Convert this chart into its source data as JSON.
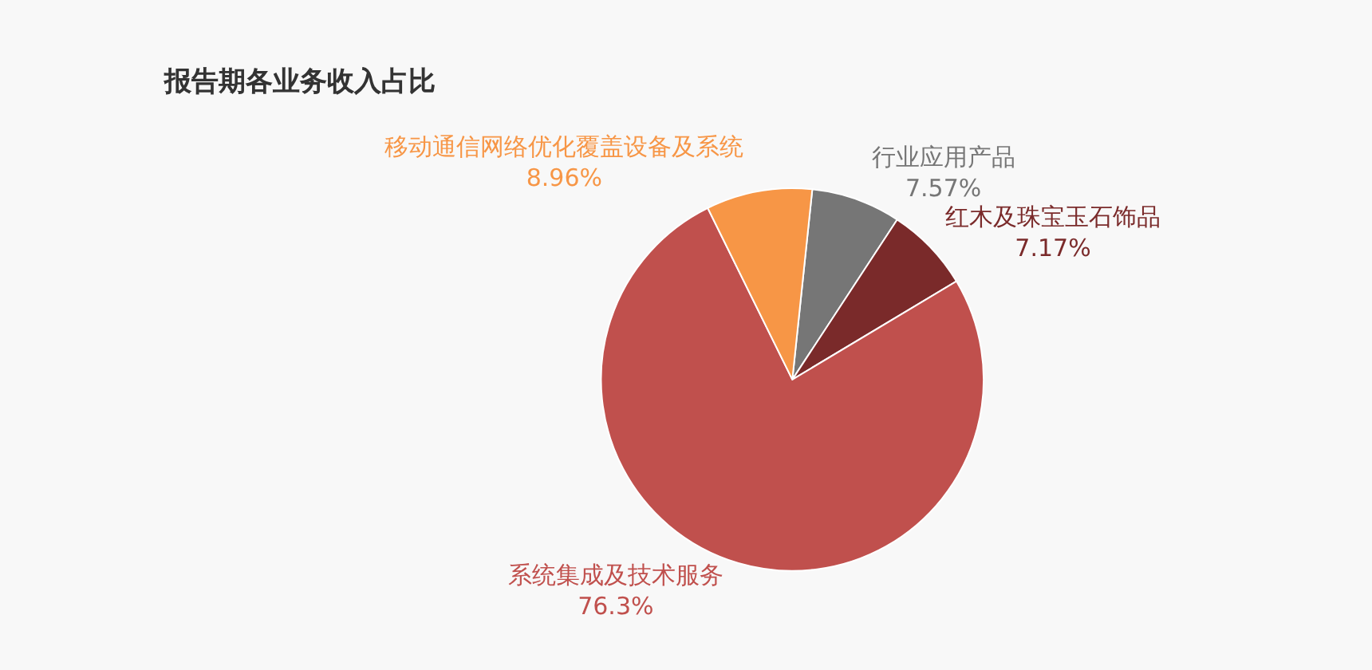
{
  "chart_data": {
    "type": "pie",
    "title": "报告期各业务收入占比",
    "categories": [
      "行业应用产品",
      "红木及珠宝玉石饰品",
      "系统集成及技术服务",
      "移动通信网络优化覆盖设备及系统"
    ],
    "values": [
      7.57,
      7.17,
      76.3,
      8.96
    ],
    "value_labels": [
      "7.57%",
      "7.17%",
      "76.3%",
      "8.96%"
    ],
    "colors": [
      "#767676",
      "#7a2a2a",
      "#c0504d",
      "#f79646"
    ],
    "legend": false
  }
}
